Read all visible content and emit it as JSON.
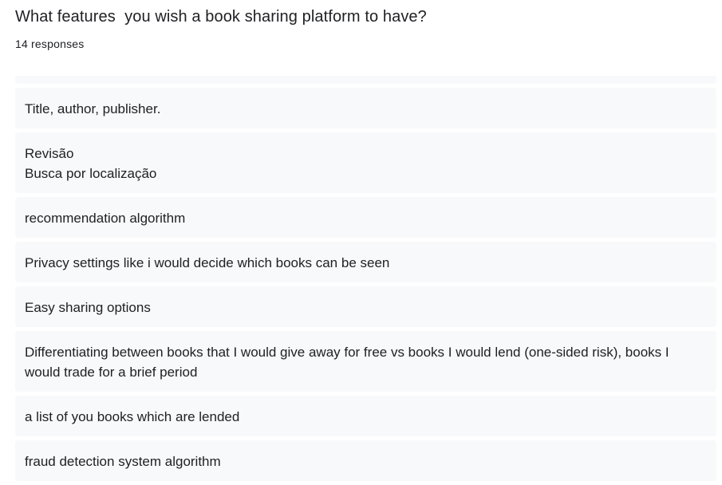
{
  "question": {
    "title": "What features  you wish a book sharing platform to have?",
    "response_count": "14 responses"
  },
  "responses": [
    "Title, author, publisher.",
    "Revisão\nBusca por localização",
    "recommendation algorithm",
    "Privacy settings like i would decide which books can be seen",
    "Easy sharing options",
    "Differentiating between books that I would give away for free vs books I would lend (one-sided risk), books I would trade for a brief period",
    "a list of you books which are lended",
    "fraud detection system algorithm"
  ]
}
